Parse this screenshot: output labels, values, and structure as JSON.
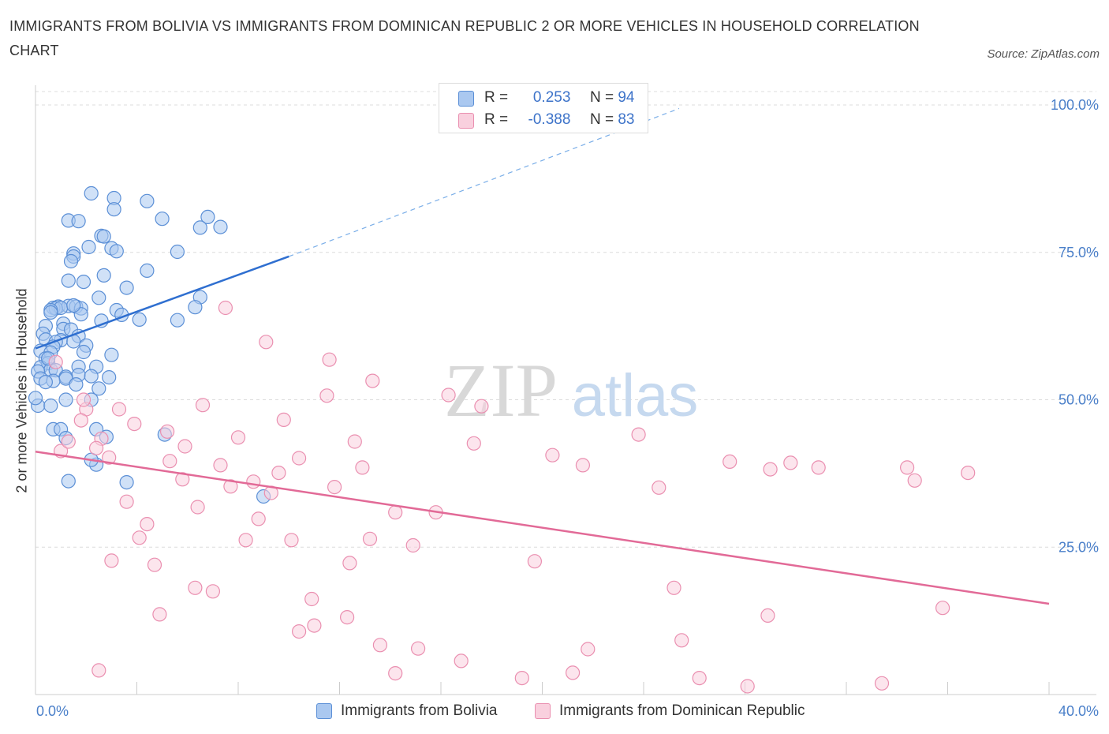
{
  "header": {
    "title": "IMMIGRANTS FROM BOLIVIA VS IMMIGRANTS FROM DOMINICAN REPUBLIC 2 OR MORE VEHICLES IN HOUSEHOLD CORRELATION CHART",
    "source": "Source: ZipAtlas.com"
  },
  "watermark": {
    "zip": "ZIP",
    "atlas": "atlas"
  },
  "legend": {
    "rows": [
      {
        "r_label": "R =",
        "r_value": "0.253",
        "n_label": "N =",
        "n_value": "94",
        "color": "#7aaee8"
      },
      {
        "r_label": "R =",
        "r_value": "-0.388",
        "n_label": "N =",
        "n_value": "83",
        "color": "#f2a5bf"
      }
    ]
  },
  "bottom_legend": [
    {
      "label": "Immigrants from Bolivia",
      "color": "#7aaee8"
    },
    {
      "label": "Immigrants from Dominican Republic",
      "color": "#f2a5bf"
    }
  ],
  "chart_data": {
    "type": "scatter",
    "xlabel": "",
    "ylabel": "2 or more Vehicles in Household",
    "xlim": [
      0,
      40
    ],
    "ylim": [
      0,
      100
    ],
    "x_tick_labels": [
      "0.0%",
      "40.0%"
    ],
    "y_tick_labels": [
      "100.0%",
      "75.0%",
      "50.0%",
      "25.0%"
    ],
    "y_tick_values": [
      100,
      75,
      50,
      25
    ],
    "grid": true,
    "series": [
      {
        "name": "Immigrants from Bolivia",
        "color": "#5b8fd6",
        "fill": "#aac8f0",
        "trend_color": "#2f6fd0",
        "trend": {
          "x_start": 0.0,
          "y_start": 58.7,
          "x_solid_end": 10.0,
          "y_solid_end": 74.3,
          "x_dash_end": 25.4,
          "y_dash_end": 99.4
        },
        "points": [
          [
            2.2,
            85.0
          ],
          [
            3.1,
            84.2
          ],
          [
            4.4,
            83.7
          ],
          [
            3.1,
            82.3
          ],
          [
            1.3,
            80.4
          ],
          [
            1.7,
            80.3
          ],
          [
            5.0,
            80.7
          ],
          [
            6.8,
            81.0
          ],
          [
            6.5,
            79.2
          ],
          [
            7.3,
            79.3
          ],
          [
            2.6,
            77.8
          ],
          [
            2.7,
            77.7
          ],
          [
            2.1,
            75.9
          ],
          [
            3.0,
            75.7
          ],
          [
            3.2,
            75.2
          ],
          [
            5.6,
            75.1
          ],
          [
            1.5,
            74.8
          ],
          [
            1.5,
            74.3
          ],
          [
            1.4,
            73.5
          ],
          [
            4.4,
            71.9
          ],
          [
            2.7,
            71.1
          ],
          [
            1.3,
            70.2
          ],
          [
            1.9,
            70.0
          ],
          [
            3.6,
            69.0
          ],
          [
            2.5,
            67.3
          ],
          [
            6.5,
            67.4
          ],
          [
            0.9,
            65.8
          ],
          [
            1.3,
            65.9
          ],
          [
            1.6,
            65.8
          ],
          [
            0.7,
            65.6
          ],
          [
            0.8,
            65.5
          ],
          [
            1.0,
            65.6
          ],
          [
            1.8,
            65.5
          ],
          [
            3.2,
            65.2
          ],
          [
            6.3,
            65.7
          ],
          [
            0.6,
            65.2
          ],
          [
            0.6,
            64.8
          ],
          [
            1.8,
            64.5
          ],
          [
            3.4,
            64.4
          ],
          [
            4.1,
            63.6
          ],
          [
            2.6,
            63.4
          ],
          [
            5.6,
            63.5
          ],
          [
            1.1,
            62.9
          ],
          [
            0.4,
            62.5
          ],
          [
            1.1,
            62.0
          ],
          [
            1.4,
            61.9
          ],
          [
            0.3,
            61.2
          ],
          [
            1.7,
            60.8
          ],
          [
            0.4,
            60.2
          ],
          [
            1.0,
            60.1
          ],
          [
            0.8,
            59.8
          ],
          [
            1.5,
            59.9
          ],
          [
            0.7,
            59.0
          ],
          [
            2.0,
            59.2
          ],
          [
            0.2,
            58.3
          ],
          [
            0.6,
            58.0
          ],
          [
            1.9,
            58.1
          ],
          [
            3.0,
            57.6
          ],
          [
            0.4,
            57.0
          ],
          [
            0.5,
            56.2
          ],
          [
            0.2,
            55.5
          ],
          [
            1.7,
            55.6
          ],
          [
            2.4,
            55.6
          ],
          [
            0.6,
            55.1
          ],
          [
            0.8,
            55.0
          ],
          [
            0.1,
            54.8
          ],
          [
            1.7,
            54.2
          ],
          [
            2.2,
            54.0
          ],
          [
            1.2,
            53.9
          ],
          [
            2.9,
            53.8
          ],
          [
            0.2,
            53.6
          ],
          [
            1.2,
            53.6
          ],
          [
            0.7,
            53.2
          ],
          [
            0.4,
            53.0
          ],
          [
            1.6,
            52.6
          ],
          [
            2.5,
            51.9
          ],
          [
            1.2,
            50.0
          ],
          [
            2.2,
            50.0
          ],
          [
            0.1,
            49.0
          ],
          [
            0.6,
            49.0
          ],
          [
            0.7,
            45.0
          ],
          [
            1.0,
            45.0
          ],
          [
            2.4,
            45.0
          ],
          [
            5.1,
            44.1
          ],
          [
            2.8,
            43.7
          ],
          [
            1.2,
            43.5
          ],
          [
            2.4,
            39.0
          ],
          [
            2.2,
            39.8
          ],
          [
            1.3,
            36.2
          ],
          [
            3.6,
            36.0
          ],
          [
            9.0,
            33.6
          ],
          [
            0.0,
            50.3
          ],
          [
            0.5,
            57.0
          ],
          [
            1.5,
            66.0
          ]
        ]
      },
      {
        "name": "Immigrants from Dominican Republic",
        "color": "#ea8fb0",
        "fill": "#f9d0de",
        "trend_color": "#e26a97",
        "trend": {
          "x_start": 0.0,
          "y_start": 41.2,
          "x_end": 40.0,
          "y_end": 15.4
        },
        "points": [
          [
            7.5,
            65.6
          ],
          [
            9.1,
            59.8
          ],
          [
            11.6,
            56.8
          ],
          [
            13.3,
            53.2
          ],
          [
            11.5,
            50.7
          ],
          [
            16.3,
            50.8
          ],
          [
            17.6,
            48.9
          ],
          [
            6.6,
            49.1
          ],
          [
            3.3,
            48.4
          ],
          [
            2.0,
            48.4
          ],
          [
            9.8,
            46.6
          ],
          [
            1.8,
            46.5
          ],
          [
            3.9,
            45.9
          ],
          [
            5.2,
            44.6
          ],
          [
            23.8,
            44.1
          ],
          [
            8.0,
            43.6
          ],
          [
            2.6,
            43.4
          ],
          [
            12.6,
            42.9
          ],
          [
            17.3,
            42.6
          ],
          [
            5.9,
            42.1
          ],
          [
            2.4,
            41.8
          ],
          [
            1.0,
            41.3
          ],
          [
            20.4,
            40.6
          ],
          [
            2.9,
            40.2
          ],
          [
            10.4,
            40.1
          ],
          [
            5.3,
            39.6
          ],
          [
            27.4,
            39.5
          ],
          [
            29.8,
            39.3
          ],
          [
            7.3,
            38.9
          ],
          [
            12.9,
            38.5
          ],
          [
            30.9,
            38.5
          ],
          [
            34.4,
            38.5
          ],
          [
            29.0,
            38.2
          ],
          [
            9.6,
            37.6
          ],
          [
            36.8,
            37.6
          ],
          [
            5.8,
            36.5
          ],
          [
            34.7,
            36.3
          ],
          [
            8.6,
            36.1
          ],
          [
            7.7,
            35.3
          ],
          [
            11.8,
            35.2
          ],
          [
            24.6,
            35.1
          ],
          [
            9.3,
            34.2
          ],
          [
            3.6,
            32.7
          ],
          [
            6.4,
            31.8
          ],
          [
            14.2,
            30.9
          ],
          [
            15.8,
            30.9
          ],
          [
            8.8,
            29.8
          ],
          [
            4.4,
            28.9
          ],
          [
            4.1,
            26.6
          ],
          [
            8.3,
            26.2
          ],
          [
            10.1,
            26.2
          ],
          [
            13.2,
            26.4
          ],
          [
            14.9,
            25.3
          ],
          [
            4.7,
            22.0
          ],
          [
            12.4,
            22.3
          ],
          [
            19.7,
            22.6
          ],
          [
            6.3,
            18.1
          ],
          [
            7.0,
            17.5
          ],
          [
            25.2,
            18.1
          ],
          [
            10.9,
            16.2
          ],
          [
            35.8,
            14.7
          ],
          [
            4.9,
            13.6
          ],
          [
            12.3,
            13.1
          ],
          [
            28.9,
            13.4
          ],
          [
            11.0,
            11.7
          ],
          [
            10.4,
            10.7
          ],
          [
            25.5,
            9.2
          ],
          [
            13.6,
            8.4
          ],
          [
            15.1,
            7.8
          ],
          [
            21.8,
            7.7
          ],
          [
            16.8,
            5.7
          ],
          [
            14.2,
            3.6
          ],
          [
            21.2,
            3.7
          ],
          [
            19.2,
            2.8
          ],
          [
            26.2,
            2.8
          ],
          [
            28.1,
            1.4
          ],
          [
            33.4,
            1.9
          ],
          [
            2.5,
            4.1
          ],
          [
            3.0,
            22.7
          ],
          [
            21.6,
            38.9
          ],
          [
            1.3,
            42.9
          ],
          [
            1.9,
            50.0
          ],
          [
            0.8,
            56.4
          ]
        ]
      }
    ]
  }
}
